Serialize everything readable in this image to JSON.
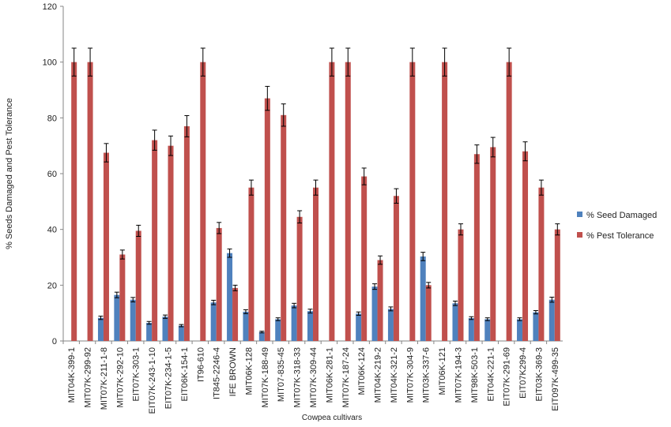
{
  "chart_data": {
    "type": "bar",
    "title": "",
    "xlabel": "Cowpea cultivars",
    "ylabel": "% Seeds Damaged and Pest Tolerance",
    "ylim": [
      0,
      120
    ],
    "yticks": [
      0,
      20,
      40,
      60,
      80,
      100,
      120
    ],
    "grid": false,
    "legend_position": "right",
    "error_bars": true,
    "categories": [
      "MIT04K-399-1",
      "MIT07K-299-92",
      "MIT07K-211-1-8",
      "MIT07K-292-10",
      "EIT07K-303-1",
      "EIT07K-243-1-10",
      "EIT07K-234-1-5",
      "EIT06K-154-1",
      "IT96-610",
      "IT845-2246-4",
      "IFE BROWN",
      "MIT06K-128",
      "MIT07K-188-49",
      "MIT07-835-45",
      "MIT07K-318-33",
      "MIT07K-309-44",
      "MIT06K-281-1",
      "MIT07K-187-24",
      "MIT06K-124",
      "MIT04K-219-2",
      "MIT04K-321-2",
      "MIT07K-304-9",
      "MIT03K-337-6",
      "MIT06K-121",
      "MIT07K-194-3",
      "MIT98K-503-1",
      "EIT04K-221-1",
      "EIT07K-291-69",
      "EIT07K299-4",
      "EIT03K-369-3",
      "EIT097K-499-35"
    ],
    "series": [
      {
        "name": "% Seed Damaged",
        "color": "#4f81bd",
        "values": [
          0,
          0,
          8.3,
          16.5,
          14.8,
          6.5,
          8.7,
          5.5,
          0,
          13.8,
          31.5,
          10.5,
          3.2,
          7.8,
          12.7,
          10.7,
          0,
          0,
          9.8,
          19.5,
          11.5,
          0,
          30.3,
          0,
          13.5,
          8.2,
          7.8,
          0,
          7.8,
          10.3,
          14.8
        ],
        "errors": [
          0,
          0,
          0.6,
          1,
          0.8,
          0.5,
          0.6,
          0.4,
          0,
          0.8,
          1.5,
          0.7,
          0.3,
          0.5,
          0.8,
          0.7,
          0,
          0,
          0.6,
          1,
          0.7,
          0,
          1.5,
          0,
          0.8,
          0.5,
          0.5,
          0,
          0.5,
          0.6,
          0.9
        ]
      },
      {
        "name": "% Pest Tolerance",
        "color": "#c0504d",
        "values": [
          100,
          100,
          67.5,
          31,
          39.5,
          72,
          70,
          77,
          100,
          40.5,
          19,
          55,
          87,
          81,
          44.5,
          55,
          100,
          100,
          59,
          29,
          52,
          100,
          20,
          100,
          40,
          67,
          69.5,
          100,
          68,
          55,
          40
        ],
        "errors": [
          5,
          5,
          3.3,
          1.6,
          2,
          3.6,
          3.5,
          3.8,
          5,
          2,
          1,
          2.7,
          4.3,
          4,
          2.2,
          2.7,
          5,
          5,
          3,
          1.5,
          2.6,
          5,
          1,
          5,
          2,
          3.3,
          3.5,
          5,
          3.4,
          2.7,
          2
        ]
      }
    ]
  }
}
